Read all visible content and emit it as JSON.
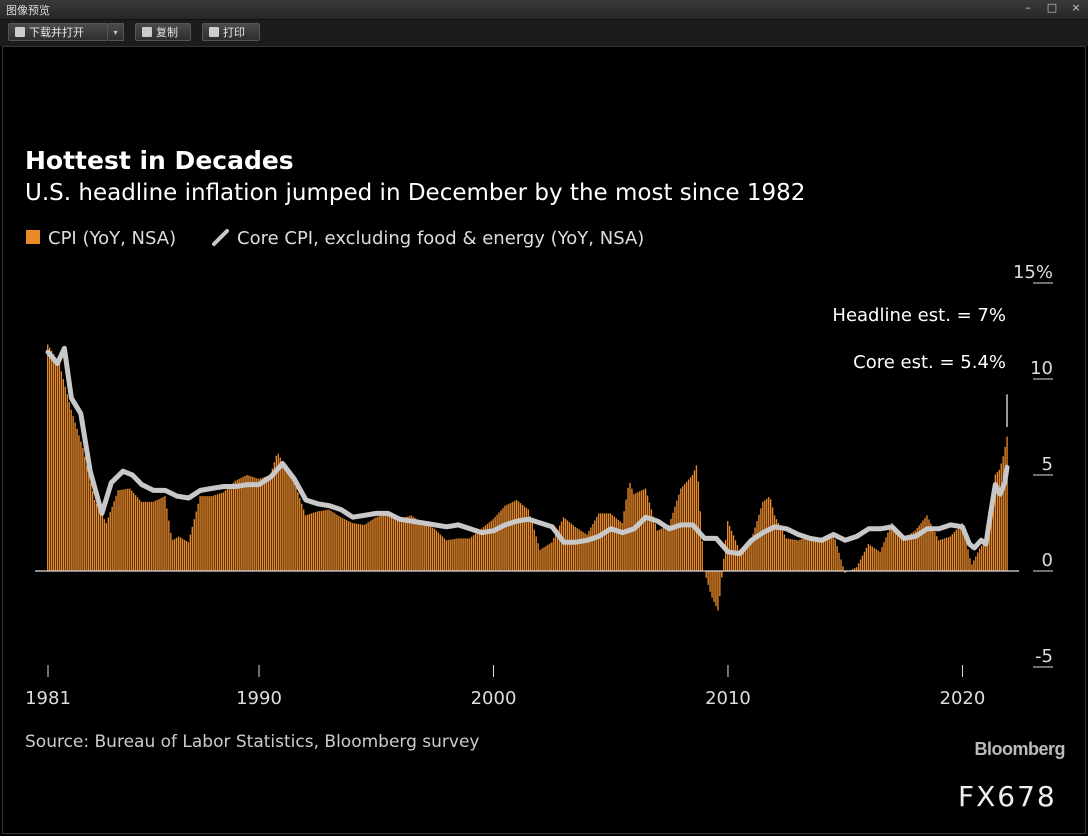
{
  "window": {
    "title": "图像预览",
    "controls": [
      "–",
      "□",
      "×"
    ]
  },
  "toolbar": {
    "download_label": "下载并打开",
    "dropdown_glyph": "▾",
    "copy_label": "复制",
    "print_label": "打印"
  },
  "watermark": "FX678",
  "brand": "Bloomberg",
  "chart_data": {
    "type": "bar",
    "title": "Hottest in Decades",
    "subtitle": "U.S. headline inflation jumped in December by the most since 1982",
    "legend": [
      {
        "name": "CPI (YoY, NSA)",
        "color": "#e8892a",
        "shape": "square"
      },
      {
        "name": "Core CPI, excluding food & energy (YoY, NSA)",
        "color": "#c8c8c8",
        "shape": "line"
      }
    ],
    "source": "Source: Bureau of Labor Statistics, Bloomberg survey",
    "annotations": [
      "Headline est. = 7%",
      "Core est. = 5.4%"
    ],
    "x_ticks": [
      1981,
      1990,
      2000,
      2010,
      2020
    ],
    "y_ticks": [
      15,
      10,
      5,
      0,
      -5
    ],
    "y_tick_labels": [
      "15%",
      "10",
      "5",
      "0",
      "-5"
    ],
    "ylim": [
      -5,
      15
    ],
    "xlim": [
      1981,
      2021.9
    ],
    "series": [
      {
        "name": "CPI (YoY, NSA)",
        "kind": "bar",
        "x": [
          1981.0,
          1981.5,
          1982.0,
          1982.5,
          1983.0,
          1983.5,
          1984.0,
          1984.5,
          1985.0,
          1985.5,
          1986.0,
          1986.3,
          1986.6,
          1987.0,
          1987.5,
          1988.0,
          1988.5,
          1989.0,
          1989.5,
          1990.0,
          1990.5,
          1990.8,
          1991.0,
          1991.5,
          1992.0,
          1992.5,
          1993.0,
          1993.5,
          1994.0,
          1994.5,
          1995.0,
          1995.5,
          1996.0,
          1996.5,
          1997.0,
          1997.5,
          1998.0,
          1998.5,
          1999.0,
          1999.5,
          2000.0,
          2000.5,
          2001.0,
          2001.5,
          2002.0,
          2002.5,
          2003.0,
          2003.5,
          2004.0,
          2004.5,
          2005.0,
          2005.5,
          2005.8,
          2006.0,
          2006.5,
          2007.0,
          2007.5,
          2008.0,
          2008.5,
          2008.7,
          2009.0,
          2009.3,
          2009.6,
          2010.0,
          2010.5,
          2011.0,
          2011.5,
          2011.8,
          2012.0,
          2012.5,
          2013.0,
          2013.5,
          2014.0,
          2014.5,
          2015.0,
          2015.5,
          2016.0,
          2016.5,
          2017.0,
          2017.5,
          2018.0,
          2018.5,
          2019.0,
          2019.5,
          2020.0,
          2020.4,
          2020.8,
          2021.0,
          2021.2,
          2021.4,
          2021.6,
          2021.8,
          2021.9
        ],
        "values": [
          11.8,
          10.8,
          8.4,
          6.4,
          3.7,
          2.5,
          4.2,
          4.3,
          3.6,
          3.6,
          3.9,
          1.6,
          1.8,
          1.5,
          3.9,
          3.9,
          4.1,
          4.7,
          5.0,
          4.8,
          5.0,
          6.2,
          5.7,
          4.7,
          2.9,
          3.1,
          3.2,
          2.8,
          2.5,
          2.4,
          2.8,
          3.0,
          2.7,
          2.9,
          2.5,
          2.2,
          1.6,
          1.7,
          1.7,
          2.2,
          2.7,
          3.4,
          3.7,
          3.2,
          1.1,
          1.5,
          2.8,
          2.3,
          1.9,
          3.0,
          3.0,
          2.5,
          4.7,
          4.0,
          4.3,
          2.1,
          2.4,
          4.3,
          5.0,
          5.6,
          0.0,
          -1.3,
          -2.1,
          2.6,
          1.1,
          1.6,
          3.6,
          3.9,
          2.9,
          1.7,
          1.6,
          1.8,
          1.6,
          2.0,
          -0.1,
          0.2,
          1.4,
          1.0,
          2.5,
          1.7,
          2.1,
          2.9,
          1.6,
          1.8,
          2.5,
          0.3,
          1.3,
          1.4,
          2.6,
          5.0,
          5.3,
          6.2,
          7.0
        ]
      },
      {
        "name": "Core CPI, excluding food & energy (YoY, NSA)",
        "kind": "line",
        "x": [
          1981.0,
          1981.4,
          1981.7,
          1982.0,
          1982.4,
          1982.8,
          1983.3,
          1983.7,
          1984.2,
          1984.6,
          1985.0,
          1985.5,
          1986.0,
          1986.5,
          1987.0,
          1987.5,
          1988.0,
          1988.5,
          1989.0,
          1989.5,
          1990.0,
          1990.5,
          1991.0,
          1991.5,
          1992.0,
          1992.5,
          1993.0,
          1993.5,
          1994.0,
          1994.5,
          1995.0,
          1995.5,
          1996.0,
          1996.5,
          1997.0,
          1997.5,
          1998.0,
          1998.5,
          1999.0,
          1999.5,
          2000.0,
          2000.5,
          2001.0,
          2001.5,
          2002.0,
          2002.5,
          2003.0,
          2003.5,
          2004.0,
          2004.5,
          2005.0,
          2005.5,
          2006.0,
          2006.5,
          2007.0,
          2007.5,
          2008.0,
          2008.5,
          2009.0,
          2009.5,
          2010.0,
          2010.5,
          2011.0,
          2011.5,
          2012.0,
          2012.5,
          2013.0,
          2013.5,
          2014.0,
          2014.5,
          2015.0,
          2015.5,
          2016.0,
          2016.5,
          2017.0,
          2017.5,
          2018.0,
          2018.5,
          2019.0,
          2019.5,
          2020.0,
          2020.3,
          2020.5,
          2020.8,
          2021.0,
          2021.2,
          2021.4,
          2021.6,
          2021.8,
          2021.9
        ],
        "values": [
          11.4,
          10.8,
          11.6,
          9.0,
          8.2,
          5.2,
          3.0,
          4.6,
          5.2,
          5.0,
          4.5,
          4.2,
          4.2,
          3.9,
          3.8,
          4.2,
          4.3,
          4.4,
          4.4,
          4.5,
          4.5,
          4.9,
          5.6,
          4.8,
          3.7,
          3.5,
          3.4,
          3.2,
          2.8,
          2.9,
          3.0,
          3.0,
          2.7,
          2.6,
          2.5,
          2.4,
          2.3,
          2.4,
          2.2,
          2.0,
          2.1,
          2.4,
          2.6,
          2.7,
          2.5,
          2.3,
          1.5,
          1.5,
          1.6,
          1.8,
          2.2,
          2.0,
          2.2,
          2.8,
          2.6,
          2.2,
          2.4,
          2.4,
          1.7,
          1.7,
          1.0,
          0.9,
          1.6,
          2.0,
          2.3,
          2.2,
          1.9,
          1.7,
          1.6,
          1.9,
          1.6,
          1.8,
          2.2,
          2.2,
          2.3,
          1.7,
          1.8,
          2.2,
          2.2,
          2.4,
          2.3,
          1.4,
          1.2,
          1.6,
          1.4,
          3.0,
          4.5,
          4.0,
          4.6,
          5.4
        ]
      }
    ]
  }
}
